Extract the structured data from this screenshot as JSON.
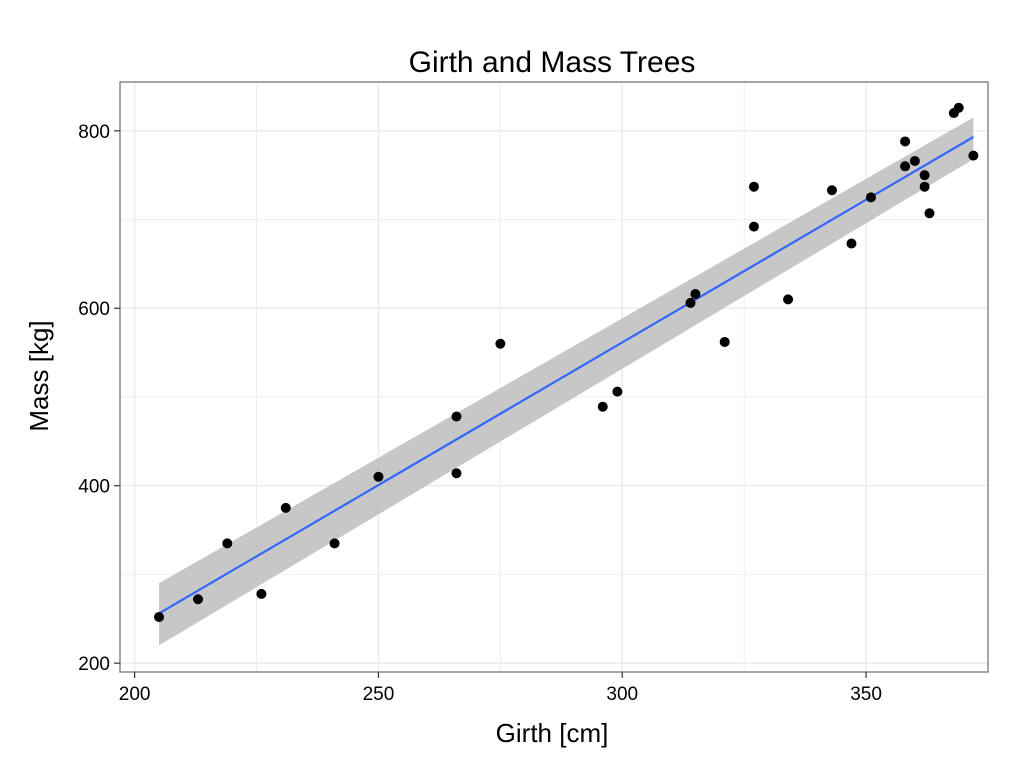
{
  "chart_data": {
    "type": "scatter",
    "title": "Girth and Mass Trees",
    "xlabel": "Girth [cm]",
    "ylabel": "Mass [kg]",
    "xlim": [
      197,
      375
    ],
    "ylim": [
      190,
      855
    ],
    "x_ticks": [
      200,
      250,
      300,
      350
    ],
    "y_ticks": [
      200,
      400,
      600,
      800
    ],
    "x_tick_labels": [
      "200",
      "250",
      "300",
      "350"
    ],
    "y_tick_labels": [
      "200",
      "400",
      "600",
      "800"
    ],
    "grid": true,
    "points": [
      [
        205,
        252
      ],
      [
        213,
        272
      ],
      [
        219,
        335
      ],
      [
        226,
        278
      ],
      [
        231,
        375
      ],
      [
        241,
        335
      ],
      [
        250,
        410
      ],
      [
        266,
        478
      ],
      [
        266,
        414
      ],
      [
        275,
        560
      ],
      [
        296,
        489
      ],
      [
        299,
        506
      ],
      [
        314,
        606
      ],
      [
        315,
        616
      ],
      [
        321,
        562
      ],
      [
        327,
        692
      ],
      [
        327,
        737
      ],
      [
        334,
        610
      ],
      [
        343,
        733
      ],
      [
        347,
        673
      ],
      [
        351,
        725
      ],
      [
        358,
        788
      ],
      [
        358,
        760
      ],
      [
        360,
        766
      ],
      [
        362,
        750
      ],
      [
        362,
        737
      ],
      [
        363,
        707
      ],
      [
        368,
        820
      ],
      [
        369,
        826
      ],
      [
        372,
        772
      ]
    ],
    "fit": {
      "x": [
        205,
        372
      ],
      "y": [
        256,
        793
      ]
    },
    "ci": {
      "x": [
        205,
        372
      ],
      "upper": [
        290,
        815
      ],
      "lower": [
        220,
        768
      ]
    },
    "colors": {
      "points": "#000000",
      "fit_line": "#3366ff",
      "ci_band": "#bdbdbd",
      "grid": "#ebebeb",
      "panel_border": "#7f7f7f"
    }
  }
}
